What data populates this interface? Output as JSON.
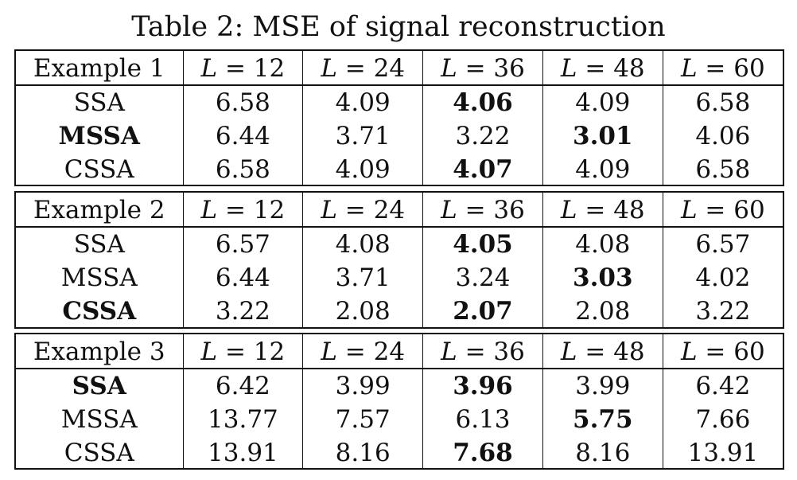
{
  "caption": "Table 2: MSE of signal reconstruction",
  "tables": [
    {
      "example": "Example 1",
      "columns": [
        "L = 12",
        "L = 24",
        "L = 36",
        "L = 48",
        "L = 60"
      ],
      "rows": [
        {
          "method": "SSA",
          "method_bold": false,
          "values": [
            "6.58",
            "4.09",
            "4.06",
            "4.09",
            "6.58"
          ],
          "bold_index": 2
        },
        {
          "method": "MSSA",
          "method_bold": true,
          "values": [
            "6.44",
            "3.71",
            "3.22",
            "3.01",
            "4.06"
          ],
          "bold_index": 3
        },
        {
          "method": "CSSA",
          "method_bold": false,
          "values": [
            "6.58",
            "4.09",
            "4.07",
            "4.09",
            "6.58"
          ],
          "bold_index": 2
        }
      ]
    },
    {
      "example": "Example 2",
      "columns": [
        "L = 12",
        "L = 24",
        "L = 36",
        "L = 48",
        "L = 60"
      ],
      "rows": [
        {
          "method": "SSA",
          "method_bold": false,
          "values": [
            "6.57",
            "4.08",
            "4.05",
            "4.08",
            "6.57"
          ],
          "bold_index": 2
        },
        {
          "method": "MSSA",
          "method_bold": false,
          "values": [
            "6.44",
            "3.71",
            "3.24",
            "3.03",
            "4.02"
          ],
          "bold_index": 3
        },
        {
          "method": "CSSA",
          "method_bold": true,
          "values": [
            "3.22",
            "2.08",
            "2.07",
            "2.08",
            "3.22"
          ],
          "bold_index": 2
        }
      ]
    },
    {
      "example": "Example 3",
      "columns": [
        "L = 12",
        "L = 24",
        "L = 36",
        "L = 48",
        "L = 60"
      ],
      "rows": [
        {
          "method": "SSA",
          "method_bold": true,
          "values": [
            "6.42",
            "3.99",
            "3.96",
            "3.99",
            "6.42"
          ],
          "bold_index": 2
        },
        {
          "method": "MSSA",
          "method_bold": false,
          "values": [
            "13.77",
            "7.57",
            "6.13",
            "5.75",
            "7.66"
          ],
          "bold_index": 3
        },
        {
          "method": "CSSA",
          "method_bold": false,
          "values": [
            "13.91",
            "8.16",
            "7.68",
            "8.16",
            "13.91"
          ],
          "bold_index": 2
        }
      ]
    }
  ]
}
